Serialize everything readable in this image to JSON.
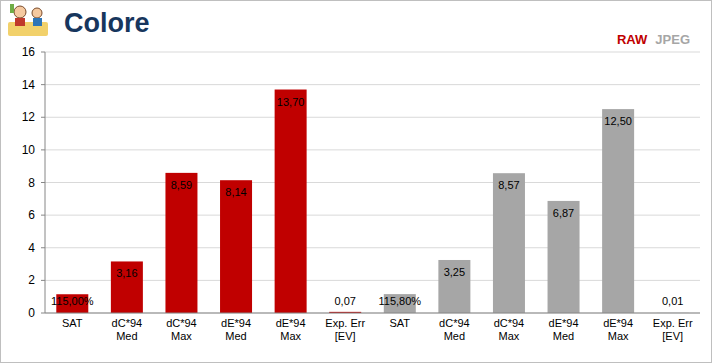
{
  "chart_data": {
    "type": "bar",
    "title": "Colore",
    "categories": [
      "SAT",
      "dC*94 Med",
      "dC*94 Max",
      "dE*94 Med",
      "dE*94 Max",
      "Exp. Err [EV]",
      "SAT",
      "dC*94 Med",
      "dC*94 Max",
      "dE*94 Med",
      "dE*94 Max",
      "Exp. Err [EV]"
    ],
    "series": [
      {
        "name": "RAW",
        "color": "#c00000",
        "values": [
          1.15,
          3.16,
          8.59,
          8.14,
          13.7,
          0.07,
          null,
          null,
          null,
          null,
          null,
          null
        ],
        "value_labels": [
          "115,00%",
          "3,16",
          "8,59",
          "8,14",
          "13,70",
          "0,07",
          null,
          null,
          null,
          null,
          null,
          null
        ]
      },
      {
        "name": "JPEG",
        "color": "#a6a6a6",
        "values": [
          null,
          null,
          null,
          null,
          null,
          null,
          1.158,
          3.25,
          8.57,
          6.87,
          12.5,
          0.01
        ],
        "value_labels": [
          null,
          null,
          null,
          null,
          null,
          null,
          "115,80%",
          "3,25",
          "8,57",
          "6,87",
          "12,50",
          "0,01"
        ]
      }
    ],
    "ylim": [
      0,
      16
    ],
    "yticks": [
      0,
      2,
      4,
      6,
      8,
      10,
      12,
      14,
      16
    ],
    "grid": true,
    "data_labels": true,
    "legend": "top-right"
  }
}
